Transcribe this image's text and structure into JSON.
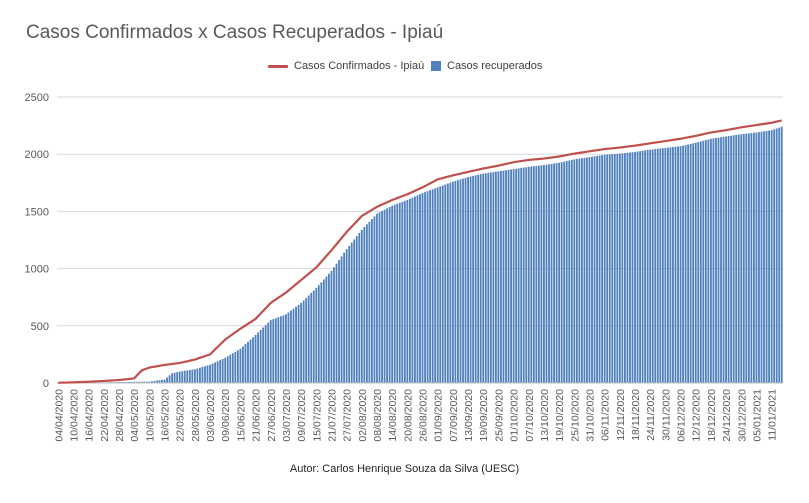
{
  "chart_data": {
    "type": "bar+line",
    "title": "Casos Confirmados x Casos Recuperados - Ipiaú",
    "legend": {
      "placement": "top"
    },
    "legend_entries": [
      "Casos Confirmados - Ipiaú",
      "Casos recuperados"
    ],
    "footer": "Autor: Carlos Henrique Souza da Silva  (UESC)",
    "ylim": [
      0,
      2500
    ],
    "yticks": [
      "0",
      "500",
      "1000",
      "1500",
      "2000",
      "2500"
    ],
    "grid": "horizontal",
    "xdate_start": "04/04/2020",
    "xdate_end": "15/01/2021",
    "xticks": [
      "04/04/2020",
      "10/04/2020",
      "16/04/2020",
      "22/04/2020",
      "28/04/2020",
      "04/05/2020",
      "10/05/2020",
      "16/05/2020",
      "22/05/2020",
      "28/05/2020",
      "03/06/2020",
      "09/06/2020",
      "15/06/2020",
      "21/06/2020",
      "27/06/2020",
      "03/07/2020",
      "09/07/2020",
      "15/07/2020",
      "21/07/2020",
      "27/07/2020",
      "02/08/2020",
      "08/08/2020",
      "14/08/2020",
      "20/08/2020",
      "26/08/2020",
      "01/09/2020",
      "07/09/2020",
      "13/09/2020",
      "19/09/2020",
      "25/09/2020",
      "01/10/2020",
      "07/10/2020",
      "13/10/2020",
      "19/10/2020",
      "25/10/2020",
      "31/10/2020",
      "06/11/2020",
      "12/11/2020",
      "18/11/2020",
      "24/11/2020",
      "30/11/2020",
      "06/12/2020",
      "12/12/2020",
      "18/12/2020",
      "24/12/2020",
      "30/12/2020",
      "05/01/2021",
      "11/01/2021"
    ],
    "series": [
      {
        "name": "Casos Confirmados - Ipiaú",
        "type": "line",
        "color": "#c0504d",
        "points": [
          {
            "x": "04/04/2020",
            "y": 2
          },
          {
            "x": "10/04/2020",
            "y": 6
          },
          {
            "x": "16/04/2020",
            "y": 11
          },
          {
            "x": "22/04/2020",
            "y": 18
          },
          {
            "x": "28/04/2020",
            "y": 26
          },
          {
            "x": "04/05/2020",
            "y": 40
          },
          {
            "x": "07/05/2020",
            "y": 110
          },
          {
            "x": "10/05/2020",
            "y": 135
          },
          {
            "x": "16/05/2020",
            "y": 158
          },
          {
            "x": "22/05/2020",
            "y": 175
          },
          {
            "x": "28/05/2020",
            "y": 205
          },
          {
            "x": "03/06/2020",
            "y": 250
          },
          {
            "x": "09/06/2020",
            "y": 380
          },
          {
            "x": "15/06/2020",
            "y": 475
          },
          {
            "x": "21/06/2020",
            "y": 560
          },
          {
            "x": "27/06/2020",
            "y": 700
          },
          {
            "x": "03/07/2020",
            "y": 790
          },
          {
            "x": "09/07/2020",
            "y": 900
          },
          {
            "x": "15/07/2020",
            "y": 1010
          },
          {
            "x": "21/07/2020",
            "y": 1160
          },
          {
            "x": "27/07/2020",
            "y": 1320
          },
          {
            "x": "02/08/2020",
            "y": 1460
          },
          {
            "x": "08/08/2020",
            "y": 1540
          },
          {
            "x": "14/08/2020",
            "y": 1600
          },
          {
            "x": "20/08/2020",
            "y": 1650
          },
          {
            "x": "26/08/2020",
            "y": 1710
          },
          {
            "x": "01/09/2020",
            "y": 1780
          },
          {
            "x": "07/09/2020",
            "y": 1815
          },
          {
            "x": "13/09/2020",
            "y": 1845
          },
          {
            "x": "19/09/2020",
            "y": 1875
          },
          {
            "x": "25/09/2020",
            "y": 1900
          },
          {
            "x": "01/10/2020",
            "y": 1930
          },
          {
            "x": "07/10/2020",
            "y": 1950
          },
          {
            "x": "13/10/2020",
            "y": 1962
          },
          {
            "x": "19/10/2020",
            "y": 1980
          },
          {
            "x": "25/10/2020",
            "y": 2005
          },
          {
            "x": "31/10/2020",
            "y": 2025
          },
          {
            "x": "06/11/2020",
            "y": 2045
          },
          {
            "x": "12/11/2020",
            "y": 2058
          },
          {
            "x": "18/11/2020",
            "y": 2075
          },
          {
            "x": "24/11/2020",
            "y": 2095
          },
          {
            "x": "30/11/2020",
            "y": 2115
          },
          {
            "x": "06/12/2020",
            "y": 2135
          },
          {
            "x": "12/12/2020",
            "y": 2160
          },
          {
            "x": "18/12/2020",
            "y": 2190
          },
          {
            "x": "24/12/2020",
            "y": 2210
          },
          {
            "x": "30/12/2020",
            "y": 2235
          },
          {
            "x": "05/01/2021",
            "y": 2255
          },
          {
            "x": "11/01/2021",
            "y": 2275
          },
          {
            "x": "15/01/2021",
            "y": 2295
          }
        ]
      },
      {
        "name": "Casos recuperados",
        "type": "bar",
        "color": "#4f81bd",
        "points": [
          {
            "x": "04/04/2020",
            "y": 0
          },
          {
            "x": "10/04/2020",
            "y": 2
          },
          {
            "x": "16/04/2020",
            "y": 4
          },
          {
            "x": "22/04/2020",
            "y": 6
          },
          {
            "x": "28/04/2020",
            "y": 8
          },
          {
            "x": "04/05/2020",
            "y": 10
          },
          {
            "x": "10/05/2020",
            "y": 12
          },
          {
            "x": "16/05/2020",
            "y": 30
          },
          {
            "x": "19/05/2020",
            "y": 85
          },
          {
            "x": "22/05/2020",
            "y": 100
          },
          {
            "x": "28/05/2020",
            "y": 120
          },
          {
            "x": "03/06/2020",
            "y": 160
          },
          {
            "x": "09/06/2020",
            "y": 220
          },
          {
            "x": "15/06/2020",
            "y": 300
          },
          {
            "x": "21/06/2020",
            "y": 420
          },
          {
            "x": "27/06/2020",
            "y": 550
          },
          {
            "x": "03/07/2020",
            "y": 600
          },
          {
            "x": "09/07/2020",
            "y": 700
          },
          {
            "x": "15/07/2020",
            "y": 830
          },
          {
            "x": "21/07/2020",
            "y": 980
          },
          {
            "x": "27/07/2020",
            "y": 1170
          },
          {
            "x": "02/08/2020",
            "y": 1340
          },
          {
            "x": "08/08/2020",
            "y": 1480
          },
          {
            "x": "14/08/2020",
            "y": 1550
          },
          {
            "x": "20/08/2020",
            "y": 1600
          },
          {
            "x": "26/08/2020",
            "y": 1660
          },
          {
            "x": "01/09/2020",
            "y": 1710
          },
          {
            "x": "07/09/2020",
            "y": 1760
          },
          {
            "x": "13/09/2020",
            "y": 1800
          },
          {
            "x": "19/09/2020",
            "y": 1830
          },
          {
            "x": "25/09/2020",
            "y": 1850
          },
          {
            "x": "01/10/2020",
            "y": 1870
          },
          {
            "x": "07/10/2020",
            "y": 1890
          },
          {
            "x": "13/10/2020",
            "y": 1905
          },
          {
            "x": "19/10/2020",
            "y": 1925
          },
          {
            "x": "25/10/2020",
            "y": 1955
          },
          {
            "x": "31/10/2020",
            "y": 1975
          },
          {
            "x": "06/11/2020",
            "y": 1995
          },
          {
            "x": "12/11/2020",
            "y": 2005
          },
          {
            "x": "18/11/2020",
            "y": 2020
          },
          {
            "x": "24/11/2020",
            "y": 2040
          },
          {
            "x": "30/11/2020",
            "y": 2055
          },
          {
            "x": "06/12/2020",
            "y": 2070
          },
          {
            "x": "12/12/2020",
            "y": 2100
          },
          {
            "x": "18/12/2020",
            "y": 2135
          },
          {
            "x": "24/12/2020",
            "y": 2155
          },
          {
            "x": "30/12/2020",
            "y": 2175
          },
          {
            "x": "05/01/2021",
            "y": 2190
          },
          {
            "x": "11/01/2021",
            "y": 2210
          },
          {
            "x": "15/01/2021",
            "y": 2240
          }
        ]
      }
    ]
  }
}
